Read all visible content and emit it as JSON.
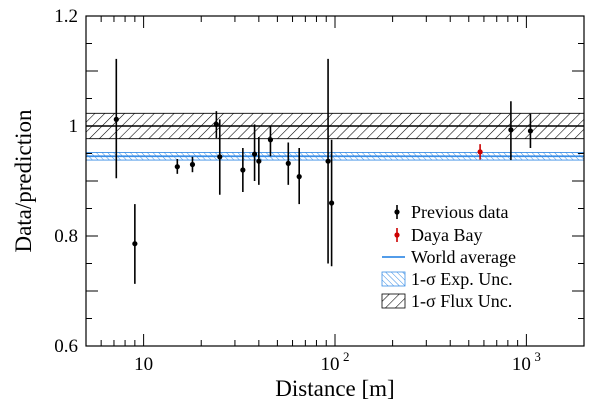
{
  "chart_data": {
    "type": "scatter",
    "xlabel": "Distance [m]",
    "ylabel": "Data/prediction",
    "x_scale": "log",
    "xlim": [
      5,
      2000
    ],
    "ylim": [
      0.6,
      1.2
    ],
    "x_tick_labels": [
      {
        "value": 10,
        "base": "10",
        "exp": ""
      },
      {
        "value": 100,
        "base": "10",
        "exp": "2"
      },
      {
        "value": 1000,
        "base": "10",
        "exp": "3"
      }
    ],
    "y_ticks": [
      0.6,
      0.8,
      1.0,
      1.2
    ],
    "y_tick_labels": [
      "0.6",
      "0.8",
      "1",
      "1.2"
    ],
    "grid": false,
    "legend_position": "right",
    "series": [
      {
        "name": "Previous data",
        "color": "#000000",
        "points": [
          {
            "x": 7.2,
            "y": 1.012,
            "ylo": 0.905,
            "yhi": 1.122
          },
          {
            "x": 9.0,
            "y": 0.786,
            "ylo": 0.713,
            "yhi": 0.858
          },
          {
            "x": 15.0,
            "y": 0.926,
            "ylo": 0.913,
            "yhi": 0.94
          },
          {
            "x": 18.0,
            "y": 0.93,
            "ylo": 0.916,
            "yhi": 0.944
          },
          {
            "x": 24.0,
            "y": 1.003,
            "ylo": 0.978,
            "yhi": 1.027
          },
          {
            "x": 25.0,
            "y": 0.944,
            "ylo": 0.875,
            "yhi": 1.012
          },
          {
            "x": 33.0,
            "y": 0.92,
            "ylo": 0.88,
            "yhi": 0.96
          },
          {
            "x": 38.0,
            "y": 0.949,
            "ylo": 0.9,
            "yhi": 1.003
          },
          {
            "x": 40.0,
            "y": 0.936,
            "ylo": 0.893,
            "yhi": 0.98
          },
          {
            "x": 46.0,
            "y": 0.975,
            "ylo": 0.945,
            "yhi": 1.0
          },
          {
            "x": 57.0,
            "y": 0.932,
            "ylo": 0.893,
            "yhi": 0.97
          },
          {
            "x": 65.0,
            "y": 0.908,
            "ylo": 0.858,
            "yhi": 0.96
          },
          {
            "x": 92.0,
            "y": 0.936,
            "ylo": 0.75,
            "yhi": 1.122
          },
          {
            "x": 96.0,
            "y": 0.86,
            "ylo": 0.745,
            "yhi": 0.975
          },
          {
            "x": 830.0,
            "y": 0.993,
            "ylo": 0.938,
            "yhi": 1.045
          },
          {
            "x": 1050.0,
            "y": 0.991,
            "ylo": 0.96,
            "yhi": 1.022
          }
        ]
      },
      {
        "name": "Daya Bay",
        "color": "#cc0000",
        "points": [
          {
            "x": 573.0,
            "y": 0.953,
            "ylo": 0.939,
            "yhi": 0.967
          }
        ]
      }
    ],
    "reference_lines": [
      {
        "name": "World average",
        "y": 0.945,
        "color": "#3a8ee6"
      },
      {
        "name": "1",
        "y": 1.0,
        "color": "#000000"
      }
    ],
    "bands": [
      {
        "name": "1-σ Exp. Unc.",
        "ylo": 0.938,
        "yhi": 0.952,
        "color": "#3a8ee6",
        "hatch": "backslash"
      },
      {
        "name": "1-σ Flux Unc.",
        "ylo": 0.977,
        "yhi": 1.023,
        "color": "#000000",
        "hatch": "slash"
      }
    ]
  }
}
